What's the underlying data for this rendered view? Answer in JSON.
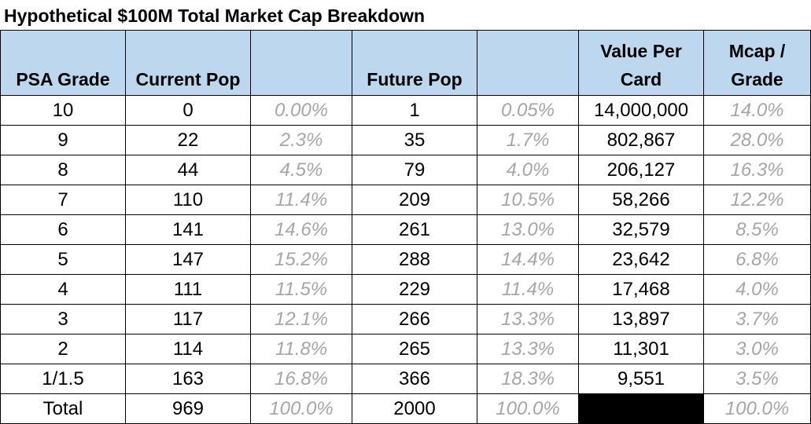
{
  "title": "Hypothetical $100M Total Market Cap Breakdown",
  "headers": {
    "grade": "PSA Grade",
    "current_pop": "Current Pop",
    "current_pct": "",
    "future_pop": "Future Pop",
    "future_pct": "",
    "value_per_card_line1": "Value Per",
    "value_per_card_line2": "Card",
    "mcap_line1": "Mcap /",
    "mcap_line2": "Grade"
  },
  "colors": {
    "header_fill": "#bdd7ee",
    "percent_text": "#a6a6a6",
    "redacted_cell": "#000000"
  },
  "rows": [
    {
      "grade": "10",
      "current_pop": "0",
      "current_pct": "0.00%",
      "future_pop": "1",
      "future_pct": "0.05%",
      "value_per_card": "14,000,000",
      "mcap_pct": "14.0%"
    },
    {
      "grade": "9",
      "current_pop": "22",
      "current_pct": "2.3%",
      "future_pop": "35",
      "future_pct": "1.7%",
      "value_per_card": "802,867",
      "mcap_pct": "28.0%"
    },
    {
      "grade": "8",
      "current_pop": "44",
      "current_pct": "4.5%",
      "future_pop": "79",
      "future_pct": "4.0%",
      "value_per_card": "206,127",
      "mcap_pct": "16.3%"
    },
    {
      "grade": "7",
      "current_pop": "110",
      "current_pct": "11.4%",
      "future_pop": "209",
      "future_pct": "10.5%",
      "value_per_card": "58,266",
      "mcap_pct": "12.2%"
    },
    {
      "grade": "6",
      "current_pop": "141",
      "current_pct": "14.6%",
      "future_pop": "261",
      "future_pct": "13.0%",
      "value_per_card": "32,579",
      "mcap_pct": "8.5%"
    },
    {
      "grade": "5",
      "current_pop": "147",
      "current_pct": "15.2%",
      "future_pop": "288",
      "future_pct": "14.4%",
      "value_per_card": "23,642",
      "mcap_pct": "6.8%"
    },
    {
      "grade": "4",
      "current_pop": "111",
      "current_pct": "11.5%",
      "future_pop": "229",
      "future_pct": "11.4%",
      "value_per_card": "17,468",
      "mcap_pct": "4.0%"
    },
    {
      "grade": "3",
      "current_pop": "117",
      "current_pct": "12.1%",
      "future_pop": "266",
      "future_pct": "13.3%",
      "value_per_card": "13,897",
      "mcap_pct": "3.7%"
    },
    {
      "grade": "2",
      "current_pop": "114",
      "current_pct": "11.8%",
      "future_pop": "265",
      "future_pct": "13.3%",
      "value_per_card": "11,301",
      "mcap_pct": "3.0%"
    },
    {
      "grade": "1/1.5",
      "current_pop": "163",
      "current_pct": "16.8%",
      "future_pop": "366",
      "future_pct": "18.3%",
      "value_per_card": "9,551",
      "mcap_pct": "3.5%"
    }
  ],
  "total": {
    "grade": "Total",
    "current_pop": "969",
    "current_pct": "100.0%",
    "future_pop": "2000",
    "future_pct": "100.0%",
    "value_per_card": "",
    "mcap_pct": "100.0%"
  }
}
